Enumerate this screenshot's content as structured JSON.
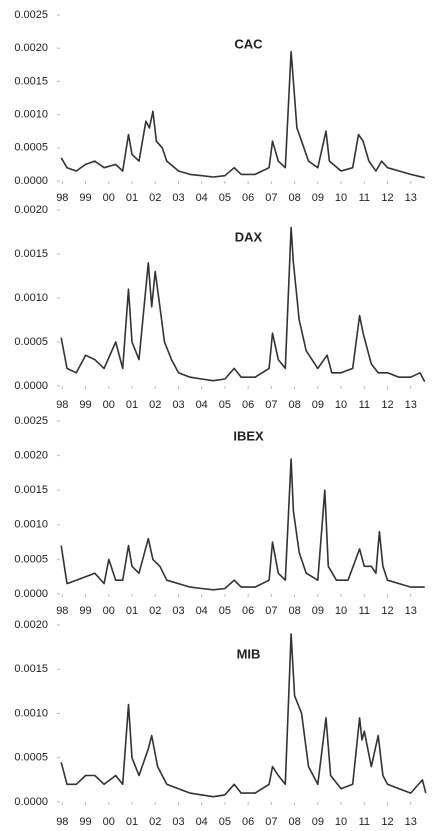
{
  "chart_data": [
    {
      "type": "line",
      "title": "CAC",
      "color": "#333333",
      "x": [
        1997.95,
        1998.2,
        1998.6,
        1999.0,
        1999.4,
        1999.8,
        2000.3,
        2000.6,
        2000.85,
        2001.0,
        2001.3,
        2001.6,
        2001.75,
        2001.9,
        2002.05,
        2002.3,
        2002.5,
        2003.0,
        2003.5,
        2004.0,
        2004.5,
        2005.0,
        2005.4,
        2005.7,
        2006.3,
        2006.9,
        2007.05,
        2007.3,
        2007.6,
        2007.85,
        2007.95,
        2008.1,
        2008.3,
        2008.6,
        2009.0,
        2009.35,
        2009.5,
        2010.0,
        2010.5,
        2010.75,
        2010.95,
        2011.2,
        2011.5,
        2011.75,
        2012.0,
        2012.5,
        2013.0,
        2013.6
      ],
      "values": [
        0.00035,
        0.0002,
        0.00015,
        0.00025,
        0.0003,
        0.0002,
        0.00025,
        0.00015,
        0.0007,
        0.0004,
        0.0003,
        0.0009,
        0.0008,
        0.00105,
        0.0006,
        0.0005,
        0.0003,
        0.00015,
        0.0001,
        8e-05,
        6e-05,
        8e-05,
        0.0002,
        0.0001,
        0.0001,
        0.0002,
        0.0006,
        0.0003,
        0.0002,
        0.00195,
        0.0015,
        0.0008,
        0.0006,
        0.0003,
        0.0002,
        0.00075,
        0.0003,
        0.00015,
        0.0002,
        0.0007,
        0.0006,
        0.0003,
        0.00015,
        0.0003,
        0.0002,
        0.00015,
        0.0001,
        5e-05
      ],
      "xlim": [
        1997.9,
        2013.7
      ],
      "xticks": [
        {
          "value": 1998,
          "label": "98"
        },
        {
          "value": 1999,
          "label": "99"
        },
        {
          "value": 2000,
          "label": "00"
        },
        {
          "value": 2001,
          "label": "01"
        },
        {
          "value": 2002,
          "label": "02"
        },
        {
          "value": 2003,
          "label": "03"
        },
        {
          "value": 2004,
          "label": "04"
        },
        {
          "value": 2005,
          "label": "05"
        },
        {
          "value": 2006,
          "label": "06"
        },
        {
          "value": 2007,
          "label": "07"
        },
        {
          "value": 2008,
          "label": "08"
        },
        {
          "value": 2009,
          "label": "09"
        },
        {
          "value": 2010,
          "label": "10"
        },
        {
          "value": 2011,
          "label": "11"
        },
        {
          "value": 2012,
          "label": "12"
        },
        {
          "value": 2013,
          "label": "13"
        }
      ],
      "ylim": [
        0,
        0.0025
      ],
      "yticks": [
        {
          "value": 0,
          "label": "0.0000"
        },
        {
          "value": 0.0005,
          "label": "0.0005"
        },
        {
          "value": 0.001,
          "label": "0.0010"
        },
        {
          "value": 0.0015,
          "label": "0.0015"
        },
        {
          "value": 0.002,
          "label": "0.0020"
        },
        {
          "value": 0.0025,
          "label": "0.0025"
        }
      ]
    },
    {
      "type": "line",
      "title": "DAX",
      "color": "#333333",
      "x": [
        1997.95,
        1998.2,
        1998.6,
        1999.0,
        1999.4,
        1999.8,
        2000.3,
        2000.6,
        2000.85,
        2001.0,
        2001.3,
        2001.7,
        2001.85,
        2002.0,
        2002.2,
        2002.4,
        2002.7,
        2003.0,
        2003.5,
        2004.0,
        2004.5,
        2005.0,
        2005.4,
        2005.7,
        2006.3,
        2006.9,
        2007.05,
        2007.3,
        2007.6,
        2007.85,
        2007.95,
        2008.2,
        2008.5,
        2009.0,
        2009.4,
        2009.6,
        2010.0,
        2010.5,
        2010.8,
        2010.95,
        2011.3,
        2011.6,
        2012.0,
        2012.5,
        2013.0,
        2013.4,
        2013.6
      ],
      "values": [
        0.00055,
        0.0002,
        0.00015,
        0.00035,
        0.0003,
        0.0002,
        0.0005,
        0.0002,
        0.0011,
        0.0005,
        0.0003,
        0.0014,
        0.0009,
        0.0013,
        0.0009,
        0.0005,
        0.0003,
        0.00015,
        0.0001,
        8e-05,
        6e-05,
        8e-05,
        0.0002,
        0.0001,
        0.0001,
        0.0002,
        0.0006,
        0.0003,
        0.0002,
        0.0018,
        0.0014,
        0.00075,
        0.0004,
        0.0002,
        0.00035,
        0.00015,
        0.00015,
        0.0002,
        0.0008,
        0.0006,
        0.00025,
        0.00015,
        0.00015,
        0.0001,
        0.0001,
        0.00015,
        5e-05
      ],
      "xlim": [
        1997.9,
        2013.7
      ],
      "xticks": [
        {
          "value": 1998,
          "label": "98"
        },
        {
          "value": 1999,
          "label": "99"
        },
        {
          "value": 2000,
          "label": "00"
        },
        {
          "value": 2001,
          "label": "01"
        },
        {
          "value": 2002,
          "label": "02"
        },
        {
          "value": 2003,
          "label": "03"
        },
        {
          "value": 2004,
          "label": "04"
        },
        {
          "value": 2005,
          "label": "05"
        },
        {
          "value": 2006,
          "label": "06"
        },
        {
          "value": 2007,
          "label": "07"
        },
        {
          "value": 2008,
          "label": "08"
        },
        {
          "value": 2009,
          "label": "09"
        },
        {
          "value": 2010,
          "label": "10"
        },
        {
          "value": 2011,
          "label": "11"
        },
        {
          "value": 2012,
          "label": "12"
        },
        {
          "value": 2013,
          "label": "13"
        }
      ],
      "ylim": [
        0,
        0.002
      ],
      "yticks": [
        {
          "value": 0,
          "label": "0.0000"
        },
        {
          "value": 0.0005,
          "label": "0.0005"
        },
        {
          "value": 0.001,
          "label": "0.0010"
        },
        {
          "value": 0.0015,
          "label": "0.0015"
        },
        {
          "value": 0.002,
          "label": "0.0020"
        }
      ]
    },
    {
      "type": "line",
      "title": "IBEX",
      "color": "#333333",
      "x": [
        1997.95,
        1998.2,
        1998.6,
        1999.0,
        1999.4,
        1999.8,
        2000.0,
        2000.3,
        2000.6,
        2000.85,
        2001.0,
        2001.3,
        2001.7,
        2001.9,
        2002.2,
        2002.5,
        2003.0,
        2003.5,
        2004.0,
        2004.5,
        2005.0,
        2005.4,
        2005.7,
        2006.3,
        2006.9,
        2007.05,
        2007.3,
        2007.6,
        2007.85,
        2007.95,
        2008.2,
        2008.5,
        2009.0,
        2009.3,
        2009.45,
        2009.8,
        2010.3,
        2010.8,
        2011.0,
        2011.3,
        2011.5,
        2011.65,
        2011.8,
        2012.0,
        2012.5,
        2013.0,
        2013.6
      ],
      "values": [
        0.0007,
        0.00015,
        0.0002,
        0.00025,
        0.0003,
        0.00015,
        0.0005,
        0.0002,
        0.0002,
        0.0007,
        0.0004,
        0.0003,
        0.0008,
        0.0005,
        0.0004,
        0.0002,
        0.00015,
        0.0001,
        8e-05,
        6e-05,
        8e-05,
        0.0002,
        0.0001,
        0.0001,
        0.0002,
        0.00075,
        0.0003,
        0.0002,
        0.00195,
        0.0012,
        0.0006,
        0.0003,
        0.0002,
        0.0015,
        0.0004,
        0.0002,
        0.0002,
        0.00065,
        0.0004,
        0.0004,
        0.0003,
        0.0009,
        0.0004,
        0.0002,
        0.00015,
        0.0001,
        0.0001
      ],
      "xlim": [
        1997.9,
        2013.7
      ],
      "xticks": [
        {
          "value": 1998,
          "label": "98"
        },
        {
          "value": 1999,
          "label": "99"
        },
        {
          "value": 2000,
          "label": "00"
        },
        {
          "value": 2001,
          "label": "01"
        },
        {
          "value": 2002,
          "label": "02"
        },
        {
          "value": 2003,
          "label": "03"
        },
        {
          "value": 2004,
          "label": "04"
        },
        {
          "value": 2005,
          "label": "05"
        },
        {
          "value": 2006,
          "label": "06"
        },
        {
          "value": 2007,
          "label": "07"
        },
        {
          "value": 2008,
          "label": "08"
        },
        {
          "value": 2009,
          "label": "09"
        },
        {
          "value": 2010,
          "label": "10"
        },
        {
          "value": 2011,
          "label": "11"
        },
        {
          "value": 2012,
          "label": "12"
        },
        {
          "value": 2013,
          "label": "13"
        }
      ],
      "ylim": [
        0,
        0.0025
      ],
      "yticks": [
        {
          "value": 0,
          "label": "0.0000"
        },
        {
          "value": 0.0005,
          "label": "0.0005"
        },
        {
          "value": 0.001,
          "label": "0.0010"
        },
        {
          "value": 0.0015,
          "label": "0.0015"
        },
        {
          "value": 0.002,
          "label": "0.0020"
        },
        {
          "value": 0.0025,
          "label": "0.0025"
        }
      ]
    },
    {
      "type": "line",
      "title": "MIB",
      "color": "#333333",
      "x": [
        1997.95,
        1998.2,
        1998.6,
        1999.0,
        1999.4,
        1999.8,
        2000.3,
        2000.6,
        2000.85,
        2001.0,
        2001.3,
        2001.7,
        2001.85,
        2002.1,
        2002.5,
        2003.0,
        2003.5,
        2004.0,
        2004.5,
        2005.0,
        2005.4,
        2005.7,
        2006.3,
        2006.9,
        2007.05,
        2007.3,
        2007.6,
        2007.85,
        2008.0,
        2008.15,
        2008.3,
        2008.6,
        2009.0,
        2009.35,
        2009.55,
        2010.0,
        2010.5,
        2010.8,
        2010.9,
        2011.0,
        2011.3,
        2011.6,
        2011.8,
        2012.0,
        2012.5,
        2013.0,
        2013.5,
        2013.65
      ],
      "values": [
        0.00045,
        0.0002,
        0.0002,
        0.0003,
        0.0003,
        0.0002,
        0.0003,
        0.0002,
        0.0011,
        0.0005,
        0.0003,
        0.0006,
        0.00075,
        0.0004,
        0.0002,
        0.00015,
        0.0001,
        8e-05,
        6e-05,
        8e-05,
        0.0002,
        0.0001,
        0.0001,
        0.0002,
        0.0004,
        0.0003,
        0.0002,
        0.0019,
        0.0012,
        0.0011,
        0.001,
        0.0004,
        0.0002,
        0.00095,
        0.0003,
        0.00015,
        0.0002,
        0.00095,
        0.0007,
        0.0008,
        0.0004,
        0.00075,
        0.0003,
        0.0002,
        0.00015,
        0.0001,
        0.00025,
        0.0001
      ],
      "xlim": [
        1997.9,
        2013.7
      ],
      "xticks": [
        {
          "value": 1998,
          "label": "98"
        },
        {
          "value": 1999,
          "label": "99"
        },
        {
          "value": 2000,
          "label": "00"
        },
        {
          "value": 2001,
          "label": "01"
        },
        {
          "value": 2002,
          "label": "02"
        },
        {
          "value": 2003,
          "label": "03"
        },
        {
          "value": 2004,
          "label": "04"
        },
        {
          "value": 2005,
          "label": "05"
        },
        {
          "value": 2006,
          "label": "06"
        },
        {
          "value": 2007,
          "label": "07"
        },
        {
          "value": 2008,
          "label": "08"
        },
        {
          "value": 2009,
          "label": "09"
        },
        {
          "value": 2010,
          "label": "10"
        },
        {
          "value": 2011,
          "label": "11"
        },
        {
          "value": 2012,
          "label": "12"
        },
        {
          "value": 2013,
          "label": "13"
        }
      ],
      "ylim": [
        0,
        0.002
      ],
      "yticks": [
        {
          "value": 0,
          "label": "0.0000"
        },
        {
          "value": 0.0005,
          "label": "0.0005"
        },
        {
          "value": 0.001,
          "label": "0.0010"
        },
        {
          "value": 0.0015,
          "label": "0.0015"
        },
        {
          "value": 0.002,
          "label": "0.0020"
        }
      ]
    }
  ]
}
